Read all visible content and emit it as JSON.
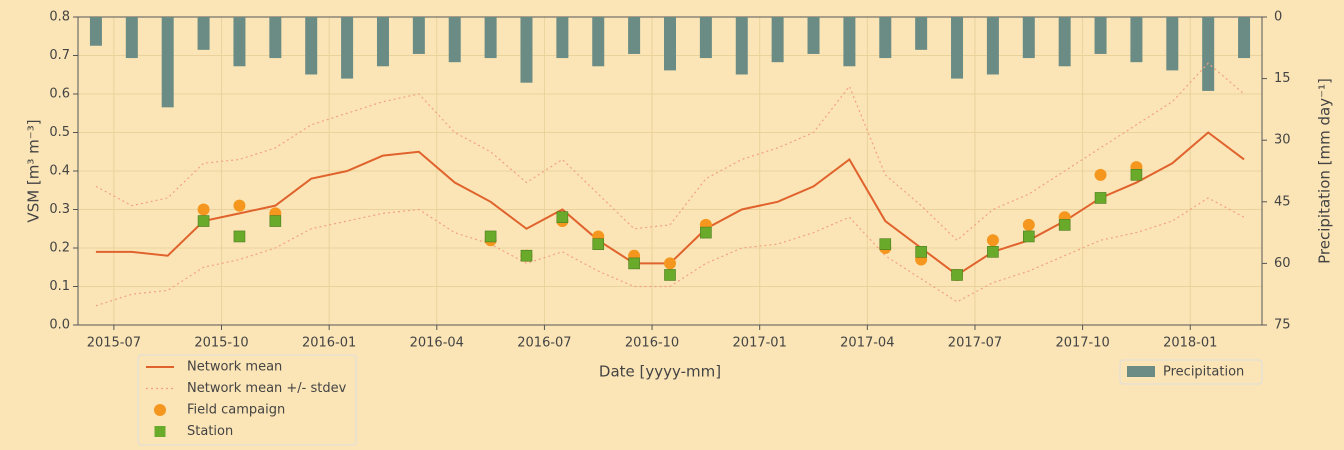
{
  "chart_data": {
    "type": "timeseries",
    "xlabel": "Date [yyyy-mm]",
    "ylabel": "VSM [m³ m⁻³]",
    "y2label": "Precipitation [mm day⁻¹]",
    "xlim": [
      "2015-06",
      "2018-03"
    ],
    "xticks": [
      "2015-07",
      "2015-10",
      "2016-01",
      "2016-04",
      "2016-07",
      "2016-10",
      "2017-01",
      "2017-04",
      "2017-07",
      "2017-10",
      "2018-01"
    ],
    "ylim": [
      0,
      0.8
    ],
    "yticks": [
      {
        "value": 0,
        "label": "0.0"
      },
      0.1,
      0.2,
      0.3,
      0.4,
      0.5,
      0.6,
      0.7,
      0.8
    ],
    "y2lim": [
      75,
      0
    ],
    "y2ticks": [
      0,
      15,
      30,
      45,
      60,
      75
    ],
    "grid": true,
    "x": [
      "2015-06",
      "2015-07",
      "2015-08",
      "2015-09",
      "2015-10",
      "2015-11",
      "2015-12",
      "2016-01",
      "2016-02",
      "2016-03",
      "2016-04",
      "2016-05",
      "2016-06",
      "2016-07",
      "2016-08",
      "2016-09",
      "2016-10",
      "2016-11",
      "2016-12",
      "2017-01",
      "2017-02",
      "2017-03",
      "2017-04",
      "2017-05",
      "2017-06",
      "2017-07",
      "2017-08",
      "2017-09",
      "2017-10",
      "2017-11",
      "2017-12",
      "2018-01",
      "2018-02"
    ],
    "series": [
      {
        "name": "Network mean",
        "kind": "line",
        "color": "#e0622c",
        "values": [
          0.19,
          0.19,
          0.18,
          0.27,
          0.29,
          0.31,
          0.38,
          0.4,
          0.44,
          0.45,
          0.37,
          0.32,
          0.25,
          0.3,
          0.22,
          0.16,
          0.16,
          0.25,
          0.3,
          0.32,
          0.36,
          0.43,
          0.27,
          0.2,
          0.13,
          0.19,
          0.22,
          0.27,
          0.33,
          0.37,
          0.42,
          0.5,
          0.43
        ]
      },
      {
        "name": "Network mean +/- stdev",
        "kind": "band",
        "color": "#f2a184",
        "upper": [
          0.36,
          0.31,
          0.33,
          0.42,
          0.43,
          0.46,
          0.52,
          0.55,
          0.58,
          0.6,
          0.5,
          0.45,
          0.37,
          0.43,
          0.34,
          0.25,
          0.26,
          0.38,
          0.43,
          0.46,
          0.5,
          0.62,
          0.39,
          0.31,
          0.22,
          0.3,
          0.34,
          0.4,
          0.46,
          0.52,
          0.58,
          0.68,
          0.6
        ],
        "lower": [
          0.05,
          0.08,
          0.09,
          0.15,
          0.17,
          0.2,
          0.25,
          0.27,
          0.29,
          0.3,
          0.24,
          0.21,
          0.16,
          0.19,
          0.14,
          0.1,
          0.1,
          0.16,
          0.2,
          0.21,
          0.24,
          0.28,
          0.18,
          0.12,
          0.06,
          0.11,
          0.14,
          0.18,
          0.22,
          0.24,
          0.27,
          0.33,
          0.28
        ]
      },
      {
        "name": "Field campaign",
        "kind": "circle",
        "color": "#f5961e",
        "x": [
          "2015-09",
          "2015-10",
          "2015-11",
          "2016-05",
          "2016-06",
          "2016-07",
          "2016-08",
          "2016-09",
          "2016-10",
          "2016-11",
          "2017-04",
          "2017-05",
          "2017-06",
          "2017-07",
          "2017-08",
          "2017-09",
          "2017-10",
          "2017-11"
        ],
        "values": [
          0.3,
          0.31,
          0.29,
          0.22,
          0.18,
          0.27,
          0.23,
          0.18,
          0.16,
          0.26,
          0.2,
          0.17,
          0.13,
          0.22,
          0.26,
          0.28,
          0.39,
          0.41
        ]
      },
      {
        "name": "Station",
        "kind": "square",
        "color": "#6aaa2a",
        "x": [
          "2015-09",
          "2015-10",
          "2015-11",
          "2016-05",
          "2016-06",
          "2016-07",
          "2016-08",
          "2016-09",
          "2016-10",
          "2016-11",
          "2017-04",
          "2017-05",
          "2017-06",
          "2017-07",
          "2017-08",
          "2017-09",
          "2017-10",
          "2017-11"
        ],
        "values": [
          0.27,
          0.23,
          0.27,
          0.23,
          0.18,
          0.28,
          0.21,
          0.16,
          0.13,
          0.24,
          0.21,
          0.19,
          0.13,
          0.19,
          0.23,
          0.26,
          0.33,
          0.39
        ]
      },
      {
        "name": "Precipitation",
        "kind": "bar",
        "axis": "y2",
        "color": "#6b8c84",
        "values": [
          7,
          10,
          22,
          8,
          12,
          10,
          14,
          15,
          12,
          9,
          11,
          10,
          16,
          10,
          12,
          9,
          13,
          10,
          14,
          11,
          9,
          12,
          10,
          8,
          15,
          14,
          10,
          12,
          9,
          11,
          13,
          18,
          10
        ]
      }
    ]
  }
}
